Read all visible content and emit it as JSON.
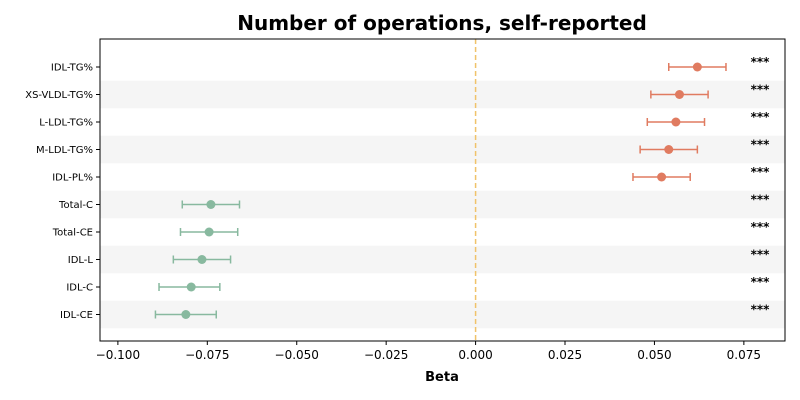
{
  "chart_data": {
    "type": "scatter",
    "title": "Number of operations, self-reported",
    "xlabel": "Beta",
    "ylabel": "",
    "xlim": [
      -0.105,
      0.0865
    ],
    "xticks": [
      -0.1,
      -0.075,
      -0.05,
      -0.025,
      0.0,
      0.025,
      0.05,
      0.075
    ],
    "xtick_labels": [
      "−0.100",
      "−0.075",
      "−0.050",
      "−0.025",
      "0.000",
      "0.025",
      "0.050",
      "0.075"
    ],
    "reference_line_x": 0.0,
    "grid": false,
    "categories": [
      "IDL-TG%",
      "XS-VLDL-TG%",
      "L-LDL-TG%",
      "M-LDL-TG%",
      "IDL-PL%",
      "Total-C",
      "Total-CE",
      "IDL-L",
      "IDL-C",
      "IDL-CE"
    ],
    "estimates": [
      0.062,
      0.057,
      0.056,
      0.054,
      0.052,
      -0.074,
      -0.0745,
      -0.0765,
      -0.0795,
      -0.081
    ],
    "ci_lower": [
      0.054,
      0.049,
      0.048,
      0.046,
      0.044,
      -0.082,
      -0.0825,
      -0.0845,
      -0.0885,
      -0.0895
    ],
    "ci_upper": [
      0.07,
      0.065,
      0.064,
      0.062,
      0.06,
      -0.066,
      -0.0665,
      -0.0685,
      -0.0715,
      -0.0725
    ],
    "significance": [
      "***",
      "***",
      "***",
      "***",
      "***",
      "***",
      "***",
      "***",
      "***",
      "***"
    ],
    "colors": {
      "positive": "#e07b60",
      "negative": "#88b99f",
      "reference_line": "#f0c36a",
      "stripe": "#f5f5f5"
    }
  }
}
